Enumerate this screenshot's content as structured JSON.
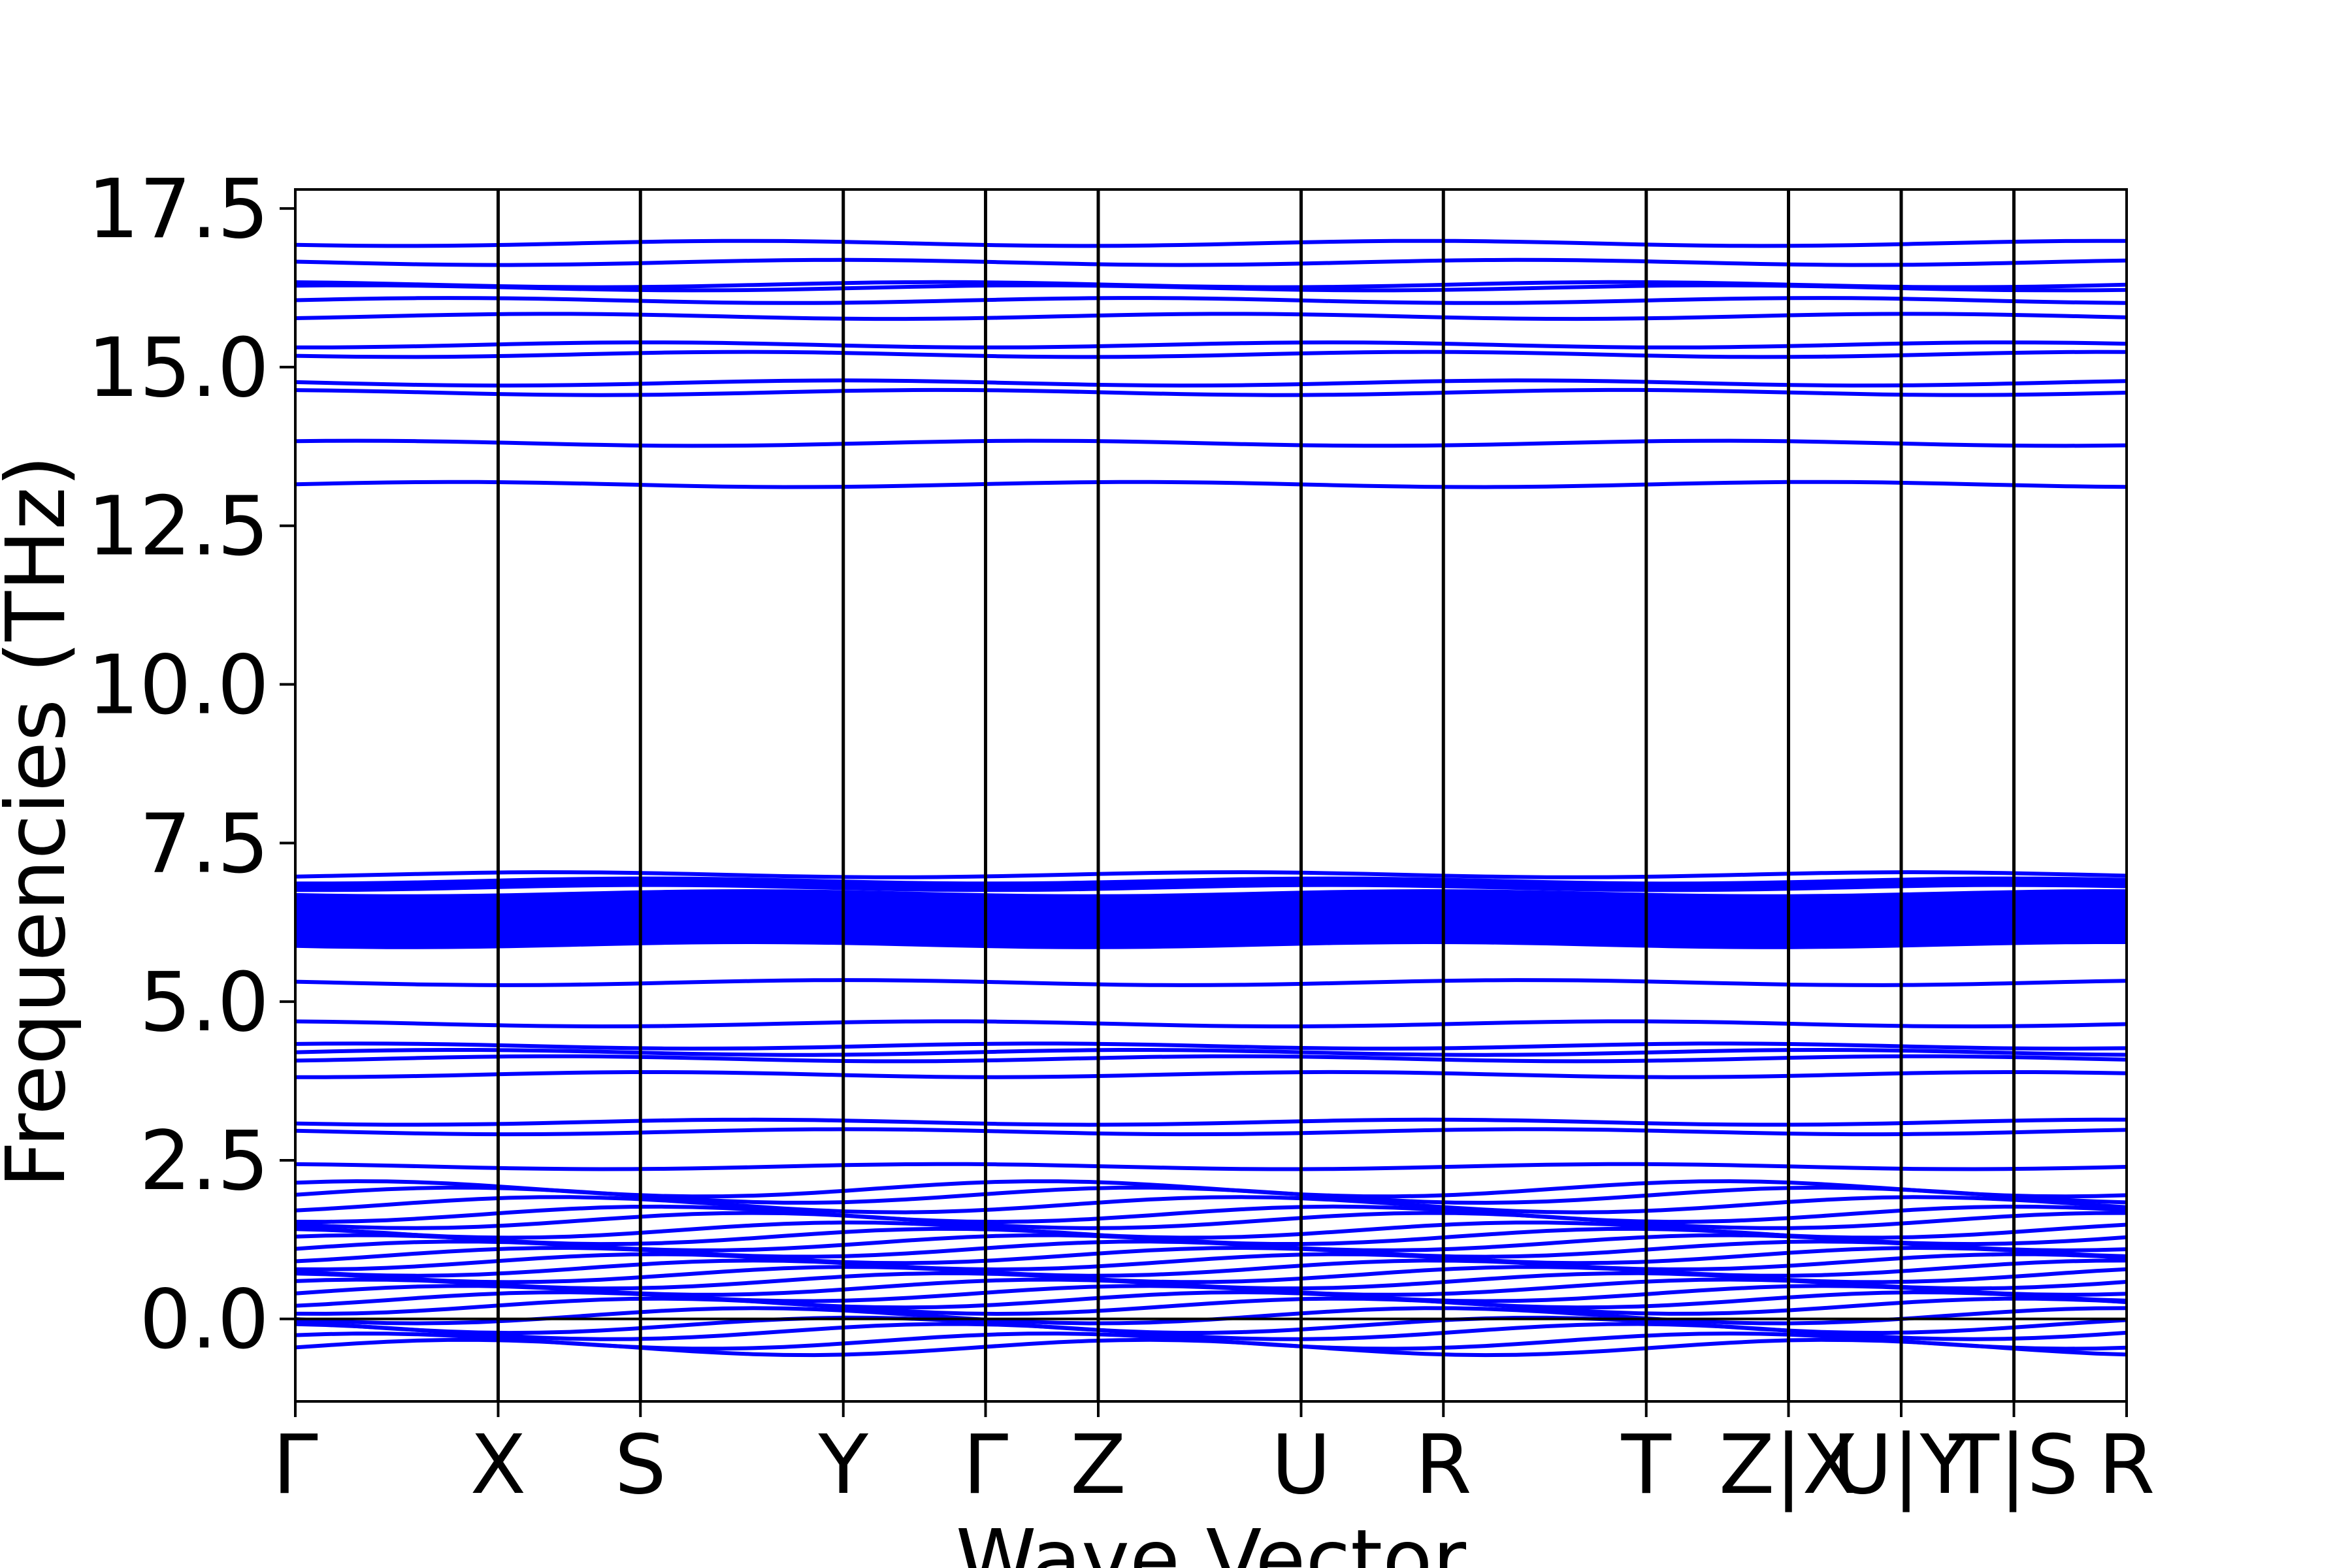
{
  "chart_data": {
    "type": "line",
    "title": "",
    "xlabel": "Wave Vector",
    "ylabel": "Frequencies (THz)",
    "ylim": [
      -1.3,
      17.8
    ],
    "yticks": [
      0.0,
      2.5,
      5.0,
      7.5,
      10.0,
      12.5,
      15.0,
      17.5
    ],
    "ytick_labels": [
      "0.0",
      "2.5",
      "5.0",
      "7.5",
      "10.0",
      "12.5",
      "15.0",
      "17.5"
    ],
    "xlim": [
      0,
      13
    ],
    "xticks": [
      0,
      1.44,
      2.45,
      3.89,
      4.9,
      5.7,
      7.14,
      8.15,
      9.59,
      10.6,
      11.4,
      12.2,
      13.0
    ],
    "xtick_labels": [
      "Γ",
      "X",
      "S",
      "Y",
      "Γ",
      "Z",
      "U",
      "R",
      "T",
      "Z|X",
      "U|Y",
      "T|S",
      "R"
    ],
    "zero_line": 0.0,
    "grid": false,
    "legend": "none",
    "series_color": "#0000ff",
    "band_frequencies": [
      -0.45,
      -0.35,
      -0.2,
      -0.1,
      0.05,
      0.2,
      0.3,
      0.4,
      0.5,
      0.6,
      0.7,
      0.8,
      0.9,
      1.0,
      1.1,
      1.2,
      1.3,
      1.4,
      1.55,
      1.65,
      1.8,
      1.95,
      2.05,
      2.4,
      2.95,
      3.1,
      3.85,
      4.1,
      4.2,
      4.3,
      4.65,
      5.3,
      5.95,
      6.05,
      6.15,
      6.25,
      6.35,
      6.45,
      6.55,
      6.65,
      6.85,
      7.0,
      13.15,
      13.8,
      14.6,
      14.75,
      15.2,
      15.35,
      15.8,
      16.05,
      16.25,
      16.3,
      16.65,
      16.95
    ]
  }
}
